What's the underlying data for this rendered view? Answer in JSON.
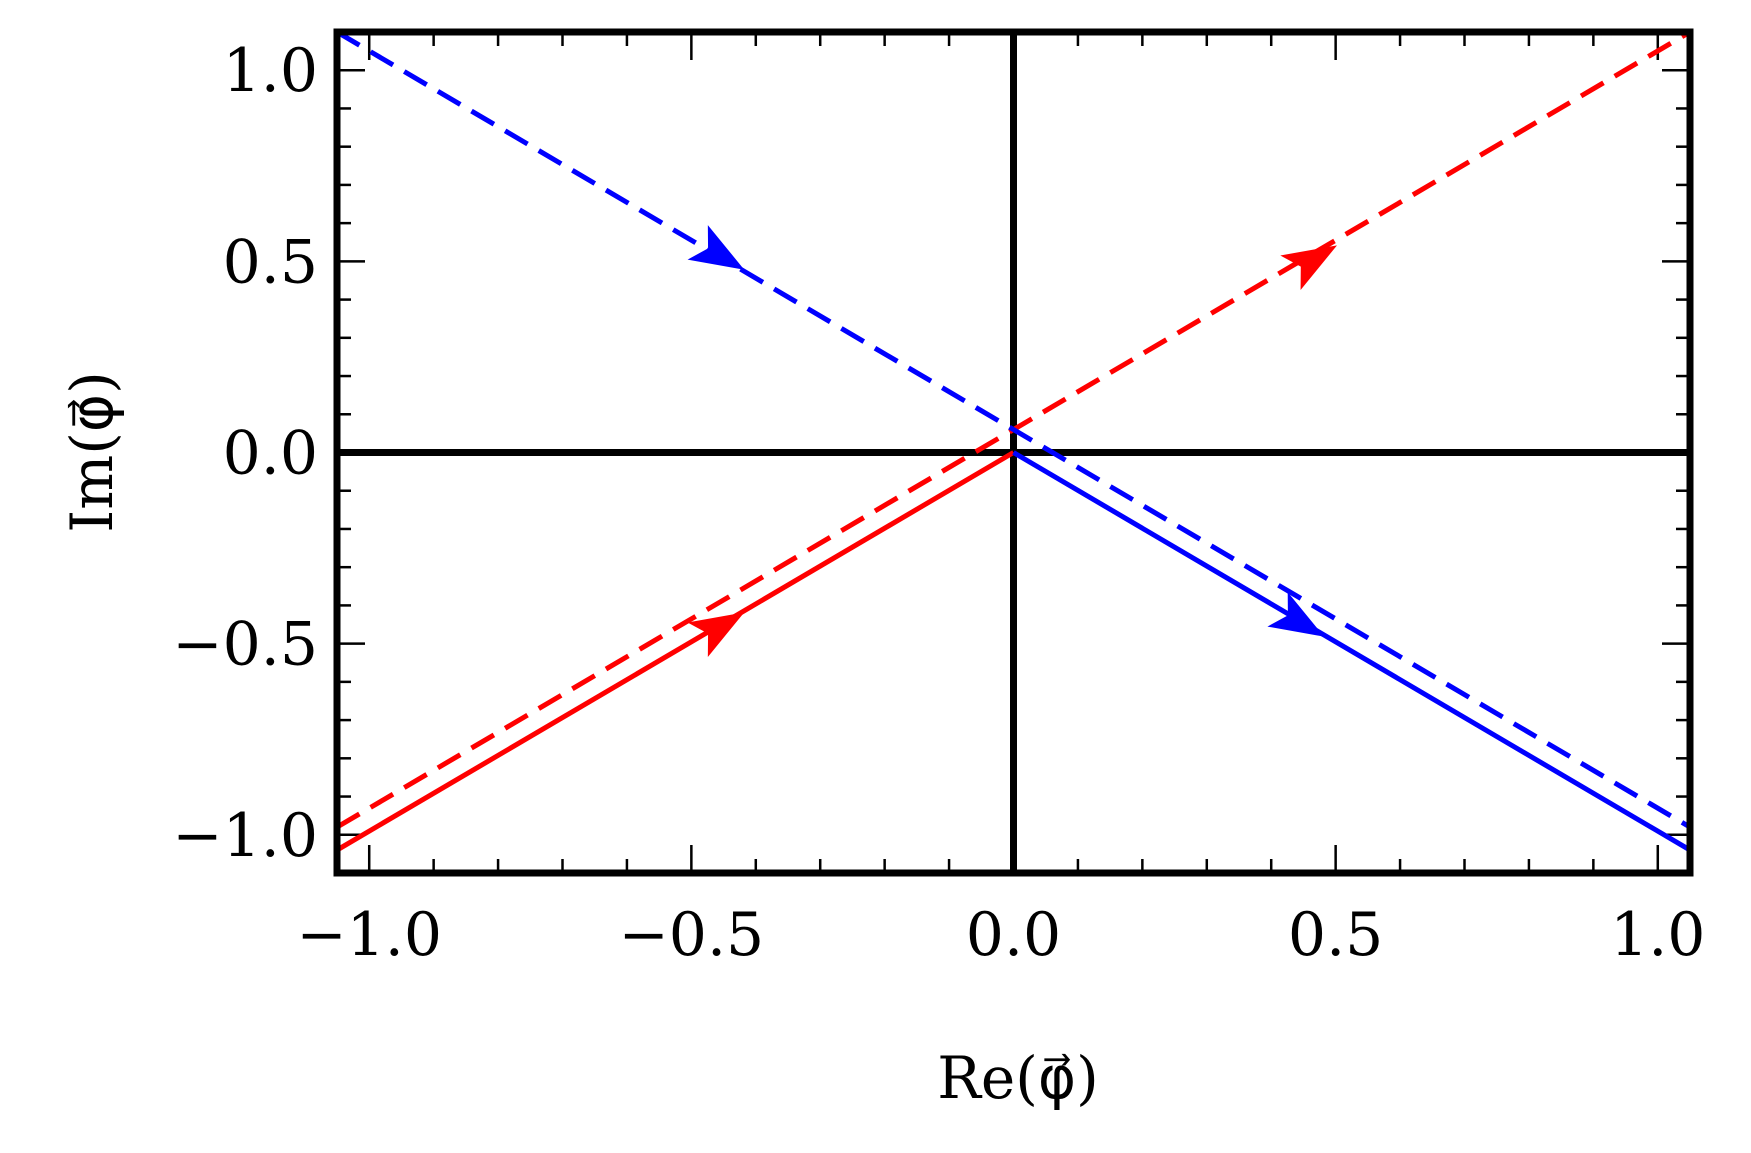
{
  "chart_data": {
    "type": "line",
    "xlabel": "Re(φ⃗)",
    "ylabel": "Im(φ⃗)",
    "xlim": [
      -1.05,
      1.05
    ],
    "ylim": [
      -1.1,
      1.1
    ],
    "x_ticks": [
      -1.0,
      -0.5,
      0.0,
      0.5,
      1.0
    ],
    "x_tick_labels": [
      "−1.0",
      "−0.5",
      "0.0",
      "0.5",
      "1.0"
    ],
    "y_ticks": [
      -1.0,
      -0.5,
      0.0,
      0.5,
      1.0
    ],
    "y_tick_labels": [
      "−1.0",
      "−0.5",
      "0.0",
      "0.5",
      "1.0"
    ],
    "grid": false,
    "reference_lines": {
      "x": 0,
      "y": 0,
      "color": "#000000"
    },
    "series": [
      {
        "color": "#ff0000",
        "style": "solid",
        "x": [
          -1.05,
          0.0
        ],
        "y": [
          -1.04,
          0.0
        ],
        "arrow_at": [
          -0.45,
          -0.45
        ]
      },
      {
        "color": "#ff0000",
        "style": "dashed",
        "x": [
          -1.05,
          1.05
        ],
        "y": [
          -0.98,
          1.1
        ],
        "arrow_at": [
          0.47,
          0.51
        ]
      },
      {
        "color": "#0000ff",
        "style": "solid",
        "x": [
          0.0,
          1.05
        ],
        "y": [
          0.0,
          -1.04
        ],
        "arrow_at": [
          0.45,
          -0.45
        ]
      },
      {
        "color": "#0000ff",
        "style": "dashed",
        "x": [
          -1.05,
          1.05
        ],
        "y": [
          1.1,
          -0.98
        ],
        "arrow_at": [
          -0.45,
          0.51
        ]
      }
    ]
  }
}
